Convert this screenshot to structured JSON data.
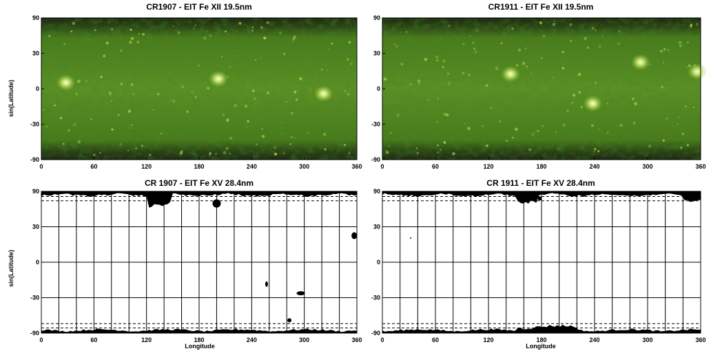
{
  "chart_data": [
    {
      "type": "heatmap",
      "title": "CR1907 - EIT Fe XII 19.5nm",
      "ylabel": "sin(Latitude)",
      "xlabel": "",
      "xlim": [
        0,
        360
      ],
      "ylim": [
        -90,
        90
      ],
      "x_ticks": [
        "0",
        "60",
        "120",
        "180",
        "240",
        "300",
        "360"
      ],
      "y_ticks": [
        "90",
        "30",
        "0",
        "-30",
        "-90"
      ],
      "colormap": "green",
      "bright_regions": [
        {
          "lon": 202,
          "lat": 8
        },
        {
          "lon": 322,
          "lat": -4
        },
        {
          "lon": 28,
          "lat": 5
        }
      ]
    },
    {
      "type": "heatmap",
      "title": "CR1911 - EIT Fe XII 19.5nm",
      "ylabel": "",
      "xlabel": "",
      "xlim": [
        0,
        360
      ],
      "ylim": [
        -90,
        90
      ],
      "x_ticks": [
        "0",
        "60",
        "120",
        "180",
        "240",
        "300",
        "360"
      ],
      "y_ticks": [
        "90",
        "30",
        "0",
        "-30",
        "-90"
      ],
      "colormap": "green",
      "bright_regions": [
        {
          "lon": 238,
          "lat": -12
        },
        {
          "lon": 292,
          "lat": 22
        },
        {
          "lon": 356,
          "lat": 14
        },
        {
          "lon": 145,
          "lat": 12
        }
      ]
    },
    {
      "type": "heatmap",
      "title": "CR 1907 - EIT Fe XV 28.4nm",
      "ylabel": "sin(Latitude)",
      "xlabel": "Longitude",
      "xlim": [
        0,
        360
      ],
      "ylim": [
        -90,
        90
      ],
      "x_ticks": [
        "0",
        "60",
        "120",
        "180",
        "240",
        "300",
        "360"
      ],
      "y_ticks": [
        "90",
        "30",
        "0",
        "-30",
        "-90"
      ],
      "colormap": "binary",
      "dashed_latitudes": [
        68,
        60,
        -60,
        -68
      ],
      "vertical_grid_step": 20
    },
    {
      "type": "heatmap",
      "title": "CR 1911 - EIT Fe XV 28.4nm",
      "ylabel": "",
      "xlabel": "Longitude",
      "xlim": [
        0,
        360
      ],
      "ylim": [
        -90,
        90
      ],
      "x_ticks": [
        "0",
        "60",
        "120",
        "180",
        "240",
        "300",
        "360"
      ],
      "y_ticks": [
        "90",
        "30",
        "0",
        "-30",
        "-90"
      ],
      "colormap": "binary",
      "dashed_latitudes": [
        68,
        60,
        -60,
        -68
      ],
      "vertical_grid_step": 20
    }
  ]
}
